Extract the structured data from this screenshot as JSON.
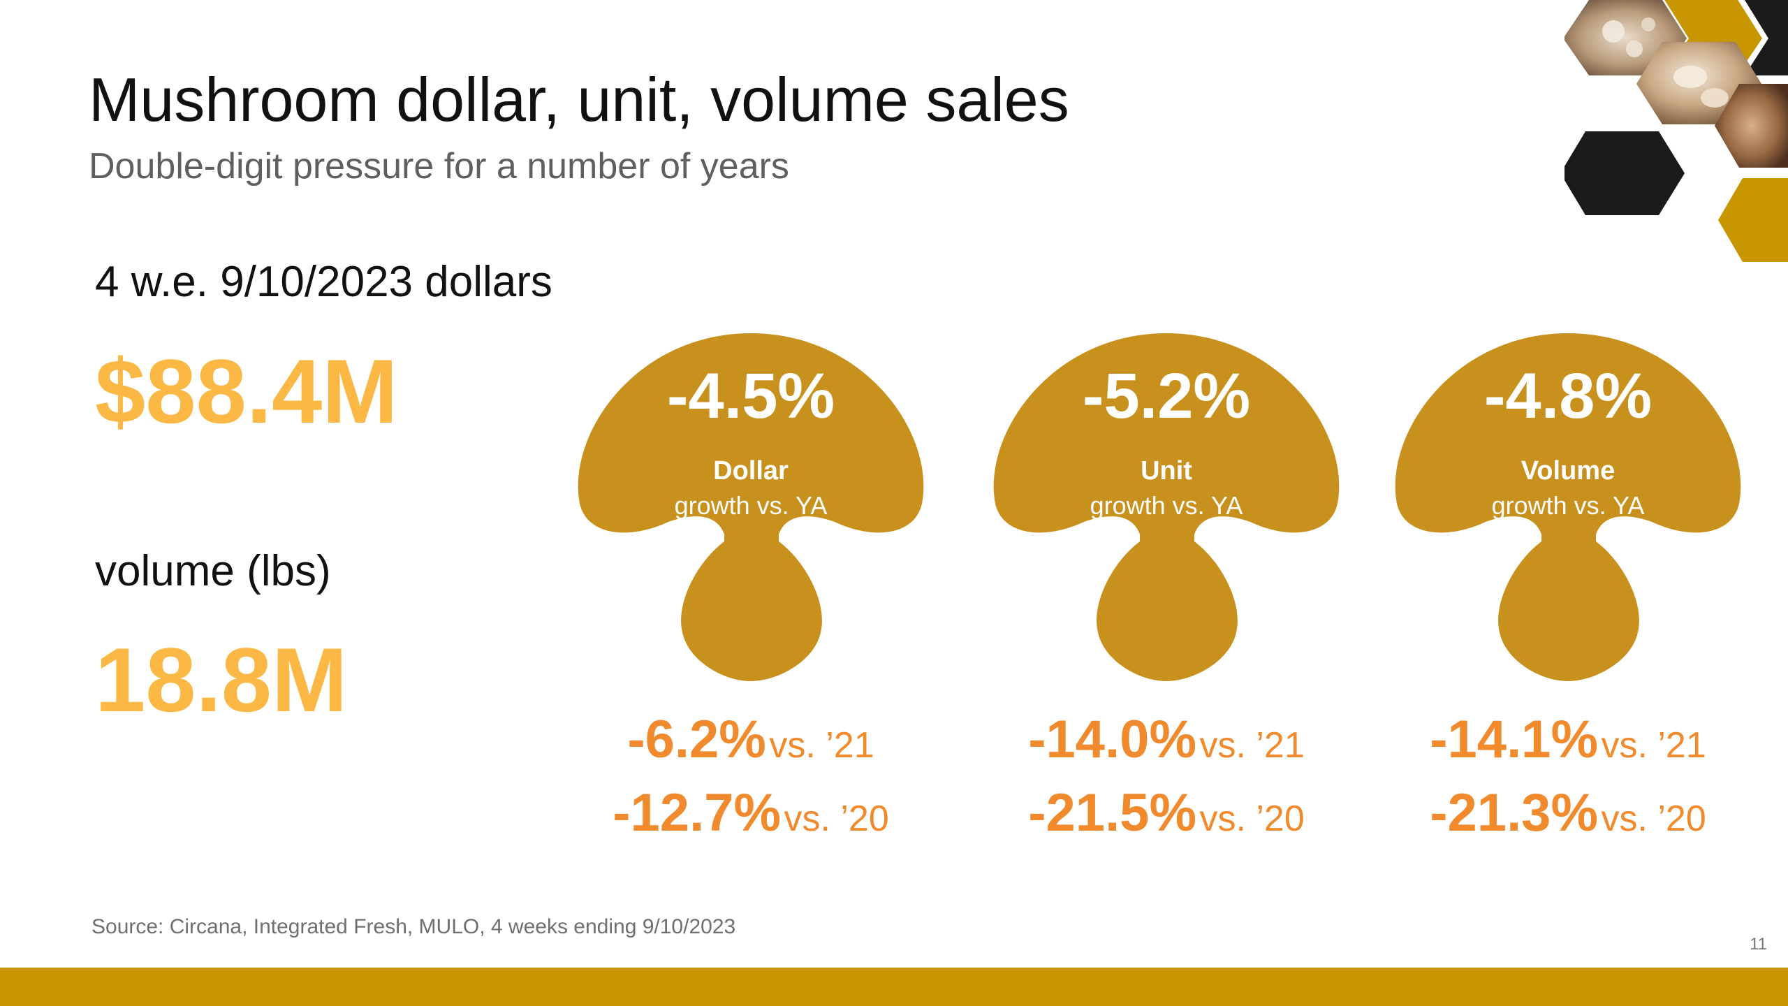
{
  "header": {
    "title": "Mushroom dollar, unit, volume sales",
    "subtitle": "Double-digit pressure for a number of years"
  },
  "summary": {
    "dollars_label": "4 w.e. 9/10/2023 dollars",
    "dollars_value": "$88.4M",
    "volume_label": "volume (lbs)",
    "volume_value": "18.8M"
  },
  "metrics": [
    {
      "pct": "-4.5%",
      "metric": "Dollar",
      "sub": "growth vs. YA",
      "cmp": [
        {
          "pct": "-6.2%",
          "vs": "vs. ’21"
        },
        {
          "pct": "-12.7%",
          "vs": "vs. ’20"
        }
      ]
    },
    {
      "pct": "-5.2%",
      "metric": "Unit",
      "sub": "growth vs. YA",
      "cmp": [
        {
          "pct": "-14.0%",
          "vs": "vs. ’21"
        },
        {
          "pct": "-21.5%",
          "vs": "vs. ’20"
        }
      ]
    },
    {
      "pct": "-4.8%",
      "metric": "Volume",
      "sub": "growth vs. YA",
      "cmp": [
        {
          "pct": "-14.1%",
          "vs": "vs. ’21"
        },
        {
          "pct": "-21.3%",
          "vs": "vs. ’20"
        }
      ]
    }
  ],
  "footer": {
    "source": "Source: Circana, Integrated Fresh, MULO, 4 weeks ending 9/10/2023",
    "page_number": "11"
  },
  "colors": {
    "accent_gold": "#C89600",
    "mushroom": "#C8911E",
    "value_yellow": "#FBB845",
    "comparison_orange": "#F08A2C"
  },
  "icons": {
    "mushroom": "mushroom-icon",
    "decor": "hexagon-photo-collage"
  }
}
